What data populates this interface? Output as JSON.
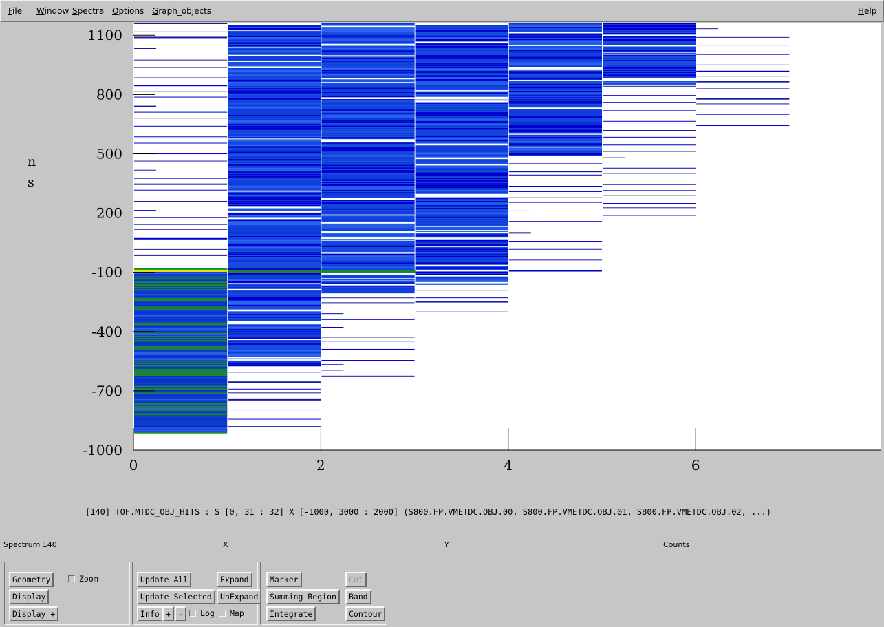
{
  "menubar": {
    "items": [
      {
        "mnemonic": "F",
        "rest": "ile"
      },
      {
        "mnemonic": "W",
        "rest": "indow"
      },
      {
        "mnemonic": "S",
        "rest": "pectra"
      },
      {
        "mnemonic": "O",
        "rest": "ptions"
      },
      {
        "mnemonic": "G",
        "rest": "raph_objects"
      }
    ],
    "help": {
      "mnemonic": "H",
      "rest": "elp"
    }
  },
  "y_axis_unit_lines": [
    "n",
    "s"
  ],
  "chart_data": {
    "type": "heatmap",
    "title": "",
    "xlabel": "",
    "ylabel": "ns",
    "xlim": [
      0,
      8
    ],
    "ylim": [
      -1000,
      1160
    ],
    "x_ticks": [
      "0",
      "2",
      "4",
      "6"
    ],
    "y_ticks": [
      "1100",
      "800",
      "500",
      "200",
      "-100",
      "-400",
      "-700",
      "-1000"
    ],
    "x_tick_values": [
      0,
      2,
      4,
      6
    ],
    "y_tick_values": [
      1100,
      800,
      500,
      200,
      -100,
      -400,
      -700,
      -1000
    ],
    "colors": {
      "low": "#0000cc",
      "mid": "#1a4fe0",
      "high_green": "#1a8a2e",
      "peak_yellow": "#e6ef00",
      "background": "#ffffff"
    },
    "columns": [
      {
        "x": 0,
        "sparse_range": [
          -80,
          1160
        ],
        "dense_range": [
          -910,
          -80
        ],
        "dense_color": "green"
      },
      {
        "x": 1,
        "sparse_range": [
          -880,
          -570
        ],
        "dense_range": [
          -570,
          1160
        ],
        "dense_color": "blue"
      },
      {
        "x": 2,
        "sparse_range": [
          -640,
          -200
        ],
        "dense_range": [
          -200,
          1160
        ],
        "dense_color": "blue"
      },
      {
        "x": 3,
        "sparse_range": [
          -340,
          -160
        ],
        "dense_range": [
          -160,
          1160
        ],
        "dense_color": "blue"
      },
      {
        "x": 4,
        "sparse_range": [
          -90,
          1160
        ],
        "dense_range": [
          500,
          1160
        ],
        "dense_color": "blue"
      },
      {
        "x": 5,
        "sparse_range": [
          160,
          1160
        ],
        "dense_range": [
          850,
          1160
        ],
        "dense_color": "blue"
      },
      {
        "x": 6,
        "sparse_range": [
          600,
          1160
        ],
        "dense_range": [
          1150,
          1160
        ],
        "dense_color": "blue"
      }
    ],
    "peak_band": {
      "x_from": 0,
      "x_to": 3,
      "y": -80
    }
  },
  "spectrum_description": "[140] TOF.MTDC_OBJ_HITS : S [0, 31 : 32] X [-1000, 3000 : 2000] (S800.FP.VMETDC.OBJ.00, S800.FP.VMETDC.OBJ.01, S800.FP.VMETDC.OBJ.02, ...)",
  "statusbar": {
    "spectrum": "Spectrum 140",
    "x": "X",
    "y": "Y",
    "counts": "Counts"
  },
  "controls": {
    "geometry": "Geometry",
    "zoom": "Zoom",
    "display": "Display",
    "display_plus": "Display +",
    "update_all": "Update All",
    "update_selected": "Update Selected",
    "info": "Info",
    "plus": "+",
    "minus": "-",
    "log": "Log",
    "map": "Map",
    "expand": "Expand",
    "unexpand": "UnExpand",
    "marker": "Marker",
    "summing_region": "Summing Region",
    "integrate": "Integrate",
    "cut": "Cut",
    "band": "Band",
    "contour": "Contour"
  }
}
